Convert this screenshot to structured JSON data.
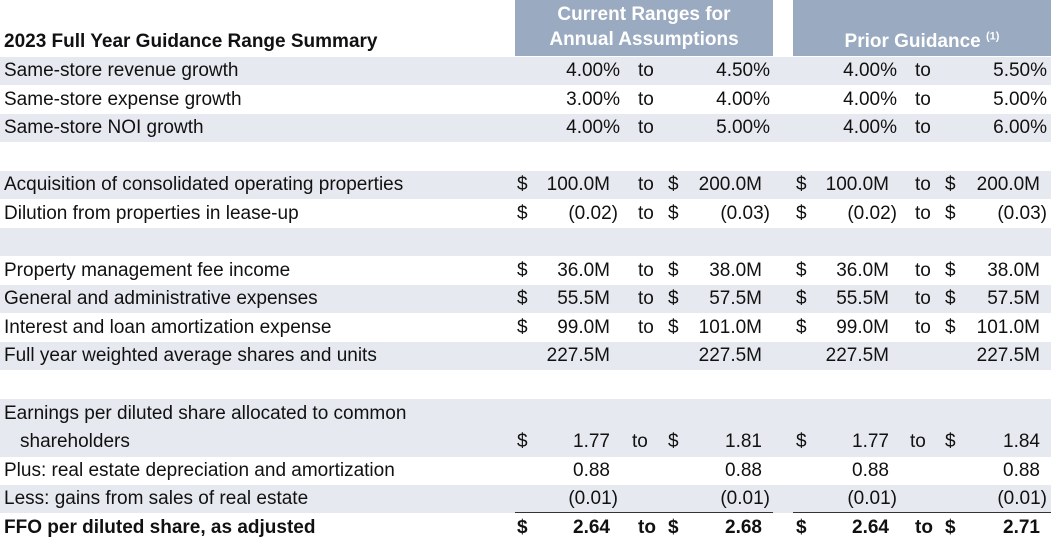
{
  "header": {
    "title": "2023 Full Year Guidance Range Summary",
    "current_line1": "Current Ranges for",
    "current_line2": "Annual Assumptions",
    "prior": "Prior Guidance",
    "prior_note": "(1)"
  },
  "colors": {
    "header_bg": "#9aaac0",
    "row_shade": "#e6e9ef"
  },
  "rows": [
    {
      "label": "Same-store revenue growth",
      "c_low": "4.00%",
      "c_to": "to",
      "c_high": "4.50%",
      "p_low": "4.00%",
      "p_to": "to",
      "p_high": "5.50%"
    },
    {
      "label": "Same-store expense growth",
      "c_low": "3.00%",
      "c_to": "to",
      "c_high": "4.00%",
      "p_low": "4.00%",
      "p_to": "to",
      "p_high": "5.00%"
    },
    {
      "label": "Same-store NOI growth",
      "c_low": "4.00%",
      "c_to": "to",
      "c_high": "5.00%",
      "p_low": "4.00%",
      "p_to": "to",
      "p_high": "6.00%"
    },
    {
      "label": "Acquisition of consolidated operating properties",
      "c_cur1": "$",
      "c_low": "100.0M",
      "c_to": "to",
      "c_cur2": "$",
      "c_high": "200.0M",
      "p_cur1": "$",
      "p_low": "100.0M",
      "p_to": "to",
      "p_cur2": "$",
      "p_high": "200.0M"
    },
    {
      "label": "Dilution from properties in lease-up",
      "c_cur1": "$",
      "c_low": "(0.02)",
      "c_to": "to",
      "c_cur2": "$",
      "c_high": "(0.03)",
      "p_cur1": "$",
      "p_low": "(0.02)",
      "p_to": "to",
      "p_cur2": "$",
      "p_high": "(0.03)"
    },
    {
      "label": "Property management fee income",
      "c_cur1": "$",
      "c_low": "36.0M",
      "c_to": "to",
      "c_cur2": "$",
      "c_high": "38.0M",
      "p_cur1": "$",
      "p_low": "36.0M",
      "p_to": "to",
      "p_cur2": "$",
      "p_high": "38.0M"
    },
    {
      "label": "General and administrative expenses",
      "c_cur1": "$",
      "c_low": "55.5M",
      "c_to": "to",
      "c_cur2": "$",
      "c_high": "57.5M",
      "p_cur1": "$",
      "p_low": "55.5M",
      "p_to": "to",
      "p_cur2": "$",
      "p_high": "57.5M"
    },
    {
      "label": "Interest and loan amortization expense",
      "c_cur1": "$",
      "c_low": "99.0M",
      "c_to": "to",
      "c_cur2": "$",
      "c_high": "101.0M",
      "p_cur1": "$",
      "p_low": "99.0M",
      "p_to": "to",
      "p_cur2": "$",
      "p_high": "101.0M"
    },
    {
      "label": "Full year weighted average shares and units",
      "c_low": "227.5M",
      "c_high": "227.5M",
      "p_low": "227.5M",
      "p_high": "227.5M"
    },
    {
      "label_line1": "Earnings per diluted share allocated to common",
      "label_line2": "shareholders",
      "c_cur1": "$",
      "c_low": "1.77",
      "c_to": "to",
      "c_cur2": "$",
      "c_high": "1.81",
      "p_cur1": "$",
      "p_low": "1.77",
      "p_to": "to",
      "p_cur2": "$",
      "p_high": "1.84"
    },
    {
      "label": "Plus: real estate depreciation and amortization",
      "c_low": "0.88",
      "c_high": "0.88",
      "p_low": "0.88",
      "p_high": "0.88"
    },
    {
      "label": "Less: gains from sales of real estate",
      "c_low": "(0.01)",
      "c_high": "(0.01)",
      "p_low": "(0.01)",
      "p_high": "(0.01)"
    },
    {
      "label": "FFO per diluted share, as adjusted",
      "c_cur1": "$",
      "c_low": "2.64",
      "c_to": "to",
      "c_cur2": "$",
      "c_high": "2.68",
      "p_cur1": "$",
      "p_low": "2.64",
      "p_to": "to",
      "p_cur2": "$",
      "p_high": "2.71"
    }
  ]
}
